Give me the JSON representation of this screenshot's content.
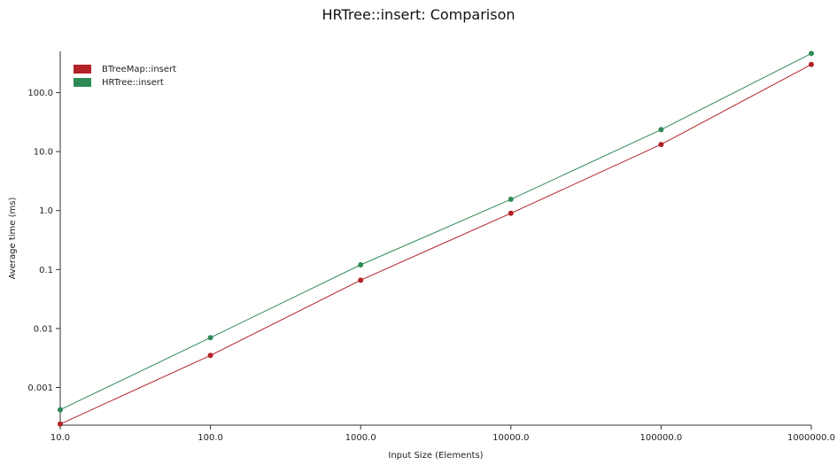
{
  "chart_data": {
    "type": "line",
    "title": "HRTree::insert: Comparison",
    "xlabel": "Input Size (Elements)",
    "ylabel": "Average time (ms)",
    "x_scale": "log",
    "y_scale": "log",
    "xlim": [
      10,
      1000000
    ],
    "ylim": [
      0.00023,
      500
    ],
    "x_ticks": [
      "10.0",
      "100.0",
      "1000.0",
      "10000.0",
      "100000.0",
      "1000000.0"
    ],
    "x_tick_values": [
      10,
      100,
      1000,
      10000,
      100000,
      1000000
    ],
    "y_ticks": [
      "0.001",
      "0.01",
      "0.1",
      "1.0",
      "10.0",
      "100.0"
    ],
    "y_tick_values": [
      0.001,
      0.01,
      0.1,
      1,
      10,
      100
    ],
    "grid": false,
    "legend_position": "top-left",
    "x": [
      10,
      100,
      1000,
      10000,
      100000,
      1000000
    ],
    "series": [
      {
        "name": "BTreeMap::insert",
        "color": "#b22228",
        "values": [
          0.00024,
          0.0035,
          0.066,
          0.9,
          13.2,
          300
        ]
      },
      {
        "name": "HRTree::insert",
        "color": "#2e8b57",
        "values": [
          0.00042,
          0.007,
          0.12,
          1.55,
          23.5,
          460
        ]
      }
    ]
  }
}
